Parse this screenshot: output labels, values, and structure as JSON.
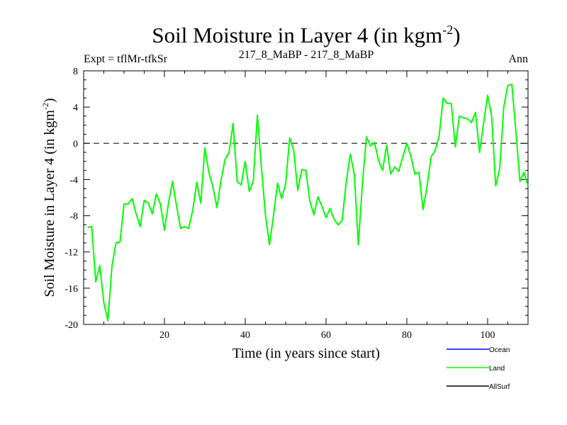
{
  "chart_data": {
    "type": "line",
    "title": "Soil Moisture in Layer 4 (in kgm",
    "title_sup": "-2",
    "title_close": ")",
    "subtitle_left": "Expt = tflMr-tfkSr",
    "subtitle_center": "217_8_MaBP - 217_8_MaBP",
    "subtitle_right": "Ann",
    "xlabel": "Time (in years since start)",
    "ylabel": "Soil Moisture in Layer 4 (in kgm",
    "ylabel_sup": "-2",
    "ylabel_close": ")",
    "xlim": [
      0,
      110
    ],
    "ylim": [
      -20,
      8
    ],
    "xticks": [
      20,
      40,
      60,
      80,
      100
    ],
    "yticks": [
      -20,
      -16,
      -12,
      -8,
      -4,
      0,
      4,
      8
    ],
    "reference_line": 0,
    "x": [
      1,
      2,
      3,
      4,
      5,
      6,
      7,
      8,
      9,
      10,
      11,
      12,
      13,
      14,
      15,
      16,
      17,
      18,
      19,
      20,
      21,
      22,
      23,
      24,
      25,
      26,
      27,
      28,
      29,
      30,
      31,
      32,
      33,
      34,
      35,
      36,
      37,
      38,
      39,
      40,
      41,
      42,
      43,
      44,
      45,
      46,
      47,
      48,
      49,
      50,
      51,
      52,
      53,
      54,
      55,
      56,
      57,
      58,
      59,
      60,
      61,
      62,
      63,
      64,
      65,
      66,
      67,
      68,
      69,
      70,
      71,
      72,
      73,
      74,
      75,
      76,
      77,
      78,
      79,
      80,
      81,
      82,
      83,
      84,
      85,
      86,
      87,
      88,
      89,
      90,
      91,
      92,
      93,
      94,
      95,
      96,
      97,
      98,
      99,
      100,
      101,
      102,
      103,
      104,
      105,
      106,
      107,
      108,
      109,
      110
    ],
    "series": [
      {
        "name": "Land",
        "color": "#00ff00",
        "values": [
          -9.3,
          -9.2,
          -15.3,
          -13.5,
          -17.6,
          -19.6,
          -13.6,
          -11.0,
          -10.9,
          -6.7,
          -6.7,
          -6.1,
          -7.8,
          -9.2,
          -6.3,
          -6.6,
          -7.8,
          -5.6,
          -6.7,
          -9.6,
          -6.6,
          -4.2,
          -6.9,
          -9.4,
          -9.2,
          -9.4,
          -7.4,
          -4.3,
          -6.6,
          -0.5,
          -3.2,
          -4.8,
          -7.1,
          -4.1,
          -1.8,
          -1.0,
          2.2,
          -4.2,
          -4.6,
          -2.0,
          -5.3,
          -4.2,
          3.1,
          -2.6,
          -7.9,
          -11.2,
          -8.0,
          -4.4,
          -6.1,
          -4.5,
          0.6,
          -0.8,
          -5.2,
          -2.9,
          -3.0,
          -6.4,
          -7.9,
          -5.9,
          -7.0,
          -8.2,
          -7.2,
          -8.4,
          -9.0,
          -8.5,
          -4.3,
          -1.2,
          -3.4,
          -11.2,
          -4.5,
          0.7,
          -0.3,
          0.1,
          -1.9,
          -3.0,
          -0.2,
          -3.4,
          -2.6,
          -3.1,
          -1.5,
          0.0,
          -1.4,
          -3.4,
          -3.2,
          -7.3,
          -4.8,
          -1.5,
          -0.8,
          0.8,
          5.0,
          4.4,
          4.4,
          -0.4,
          3.0,
          2.8,
          2.7,
          2.3,
          3.4,
          -1.0,
          2.2,
          5.3,
          3.0,
          -4.7,
          -2.8,
          4.0,
          6.4,
          6.5,
          1.3,
          -4.2,
          -3.2,
          -4.7
        ]
      }
    ],
    "legend": [
      {
        "label": "Ocean",
        "color": "#0000ff"
      },
      {
        "label": "Land",
        "color": "#00ff00"
      },
      {
        "label": "AllSurf",
        "color": "#000000"
      }
    ],
    "legend_position": "bottom-right"
  }
}
